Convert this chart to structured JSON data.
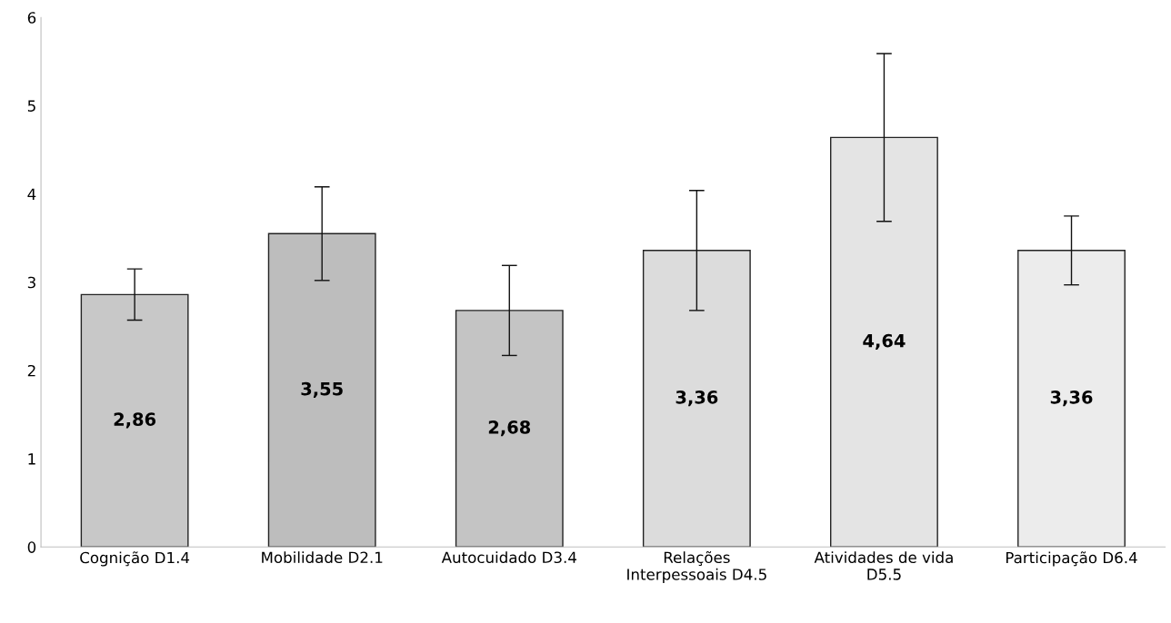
{
  "chart_data": {
    "type": "bar",
    "categories": [
      "Cognição D1.4",
      "Mobilidade D2.1",
      "Autocuidado D3.4",
      "Relações\nInterpessoais D4.5",
      "Atividades de vida\nD5.5",
      "Participação D6.4"
    ],
    "values": [
      2.86,
      3.55,
      2.68,
      3.36,
      4.64,
      3.36
    ],
    "value_labels": [
      "2,86",
      "3,55",
      "2,68",
      "3,36",
      "4,64",
      "3,36"
    ],
    "errors": [
      0.29,
      0.53,
      0.51,
      0.68,
      0.95,
      0.39
    ],
    "colors": [
      "#c8c8c8",
      "#bdbdbd",
      "#c4c4c4",
      "#dcdcdc",
      "#e4e4e4",
      "#ececec"
    ],
    "ylim": [
      0,
      6
    ],
    "yticks": [
      0,
      1,
      2,
      3,
      4,
      5,
      6
    ],
    "grid": false,
    "legend": false
  }
}
